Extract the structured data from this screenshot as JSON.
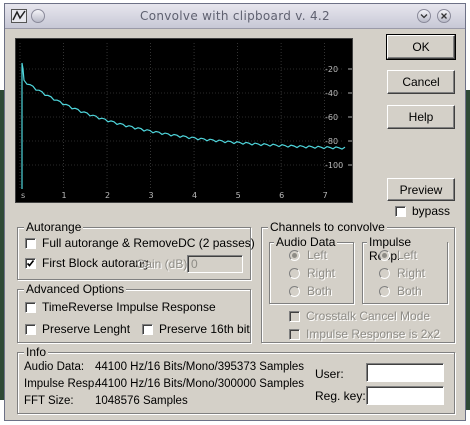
{
  "window": {
    "title": "Convolve with clipboard v. 4.2"
  },
  "scope": {
    "y_ticks": [
      "-20",
      "-40",
      "-60",
      "-80",
      "-100"
    ],
    "x_ticks": [
      "s",
      "1",
      "2",
      "3",
      "4",
      "5",
      "6",
      "7"
    ]
  },
  "buttons": {
    "ok": "OK",
    "cancel": "Cancel",
    "help": "Help",
    "preview": "Preview"
  },
  "bypass": {
    "label": "bypass",
    "checked": false
  },
  "autorange": {
    "label": "Autorange",
    "full": {
      "label": "Full autorange & RemoveDC  (2 passes)",
      "checked": false
    },
    "first_block": {
      "label": "First Block autorang",
      "checked": true
    },
    "gain_label": "Gain (dB):",
    "gain_value": "0"
  },
  "advanced": {
    "label": "Advanced Options",
    "time_reverse": {
      "label": "TimeReverse Impulse Response",
      "checked": false
    },
    "preserve_length": {
      "label": "Preserve Lenght",
      "checked": false
    },
    "preserve_16bit": {
      "label": "Preserve 16th bit",
      "checked": false
    }
  },
  "channels": {
    "label": "Channels to convolve",
    "audio": {
      "label": "Audio Data",
      "options": [
        "Left",
        "Right",
        "Both"
      ],
      "selected": "Left"
    },
    "impulse": {
      "label": "Impulse Resp.",
      "options": [
        "Left",
        "Right",
        "Both"
      ],
      "selected": "Left"
    },
    "crosstalk": {
      "label": "Crosstalk Cancel Mode",
      "checked": false
    },
    "impulse_2x2": {
      "label": "Impulse Response is 2x2",
      "checked": false
    }
  },
  "info": {
    "label": "Info",
    "audio_label": "Audio Data:",
    "audio_value": "44100 Hz/16 Bits/Mono/395373 Samples",
    "impulse_label": "Impulse Resp.",
    "impulse_value": "44100 Hz/16 Bits/Mono/300000 Samples",
    "fft_label": "FFT Size:",
    "fft_value": "1048576 Samples"
  },
  "registration": {
    "user_label": "User:",
    "user_value": "",
    "key_label": "Reg. key:",
    "key_value": ""
  },
  "colors": {
    "trace": "#4fd6dc",
    "scope_bg": "#000000",
    "scope_grid": "#555555"
  }
}
